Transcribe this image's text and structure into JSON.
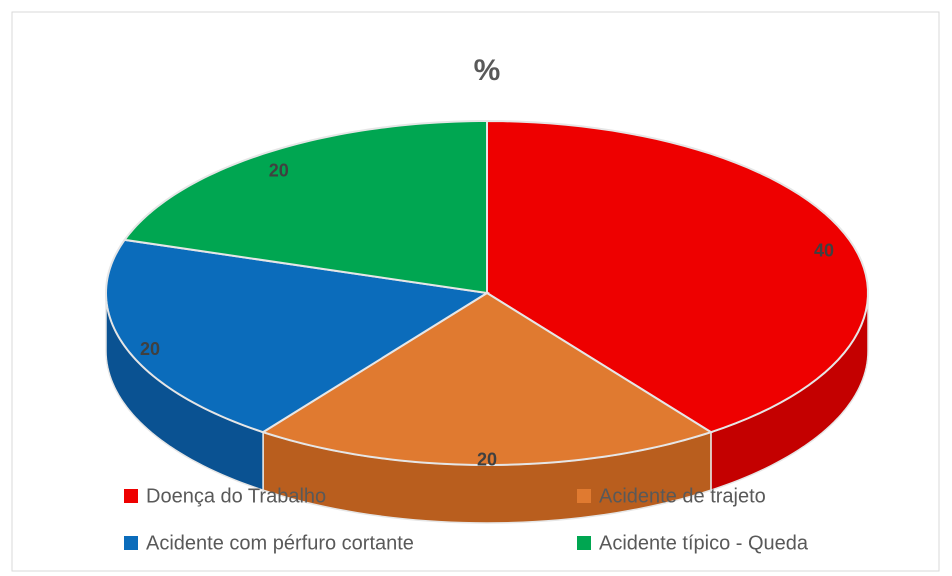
{
  "chart_data": {
    "type": "pie",
    "title": "%",
    "categories": [
      "Doença do Trabalho",
      "Acidente de trajeto",
      "Acidente com pérfuro cortante",
      "Acidente típico - Queda"
    ],
    "values": [
      40,
      20,
      20,
      20
    ],
    "colors": [
      "#ee0000",
      "#e07a30",
      "#0b6cbb",
      "#00a651"
    ],
    "side_colors": [
      "#c40000",
      "#b95e1e",
      "#0a5292",
      "#008a42"
    ],
    "legend": "bottom",
    "style": "3d"
  }
}
